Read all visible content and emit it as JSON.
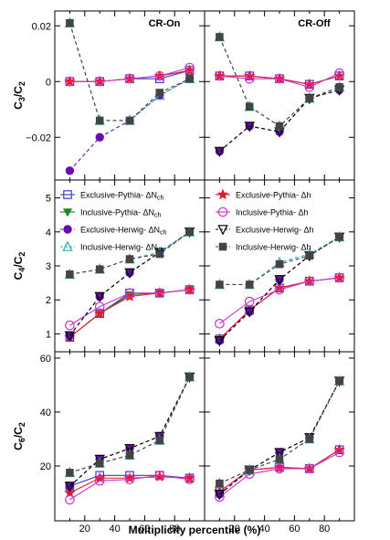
{
  "chart_data": {
    "type": "line",
    "xlabel": "Multiplicity percentile (%)",
    "x_ticks": [
      20,
      40,
      60,
      80
    ],
    "xlim": [
      0,
      100
    ],
    "x": [
      10,
      30,
      50,
      70,
      90
    ],
    "columns": [
      "CR-On",
      "CR-Off"
    ],
    "colors": {
      "exclusive_pythia_nch": "#3a3acf",
      "inclusive_pythia_nch": "#1a8a1a",
      "exclusive_herwig_nch": "#6a0dad",
      "inclusive_herwig_nch": "#2ab0b0",
      "exclusive_pythia_dh": "#e8192c",
      "inclusive_pythia_dh": "#cc33cc",
      "exclusive_herwig_dh": "#000000",
      "inclusive_herwig_dh": "#444444"
    },
    "legend": [
      {
        "key": "exclusive_pythia_nch",
        "prefix": "Exclusive-Pythia- ΔN",
        "sub": "ch",
        "marker": "open-square",
        "dashed": false
      },
      {
        "key": "inclusive_pythia_nch",
        "prefix": "Inclusive-Pythia- ΔN",
        "sub": "ch",
        "marker": "filled-tri-down",
        "dashed": false
      },
      {
        "key": "exclusive_herwig_nch",
        "prefix": "Exclusive-Herwig- ΔN",
        "sub": "ch",
        "marker": "filled-circle",
        "dashed": true
      },
      {
        "key": "inclusive_herwig_nch",
        "prefix": "Inclusive-Herwig- ΔN",
        "sub": "ch",
        "marker": "open-tri-up",
        "dashed": true
      },
      {
        "key": "exclusive_pythia_dh",
        "prefix": "Exclusive-Pythia- Δh",
        "sub": "",
        "marker": "filled-star",
        "dashed": false
      },
      {
        "key": "inclusive_pythia_dh",
        "prefix": "Inclusive-Pythia- Δh",
        "sub": "",
        "marker": "open-circle",
        "dashed": false
      },
      {
        "key": "exclusive_herwig_dh",
        "prefix": "Exclusive-Herwig- Δh",
        "sub": "",
        "marker": "open-tri-down",
        "dashed": true
      },
      {
        "key": "inclusive_herwig_dh",
        "prefix": "Inclusive-Herwig- Δh",
        "sub": "",
        "marker": "filled-square",
        "dashed": true
      }
    ],
    "rows": [
      {
        "ylabel_main": "C",
        "ylabel_sub1": "3",
        "ylabel_slash": "/C",
        "ylabel_sub2": "2",
        "ylim": [
          -0.035,
          0.025
        ],
        "y_ticks": [
          -0.02,
          0,
          0.02
        ],
        "y_tick_labels": [
          "−0.02",
          "0",
          "0.02"
        ],
        "panels": [
          {
            "title": "CR-On",
            "series": [
              {
                "key": "exclusive_pythia_nch",
                "values": [
                  0.0,
                  0.0,
                  0.001,
                  0.001,
                  0.004
                ]
              },
              {
                "key": "exclusive_pythia_dh",
                "values": [
                  0.0,
                  0.0,
                  0.001,
                  0.002,
                  0.004
                ]
              },
              {
                "key": "inclusive_pythia_dh",
                "values": [
                  0.0,
                  0.0,
                  0.001,
                  0.002,
                  0.005
                ]
              },
              {
                "key": "exclusive_herwig_nch",
                "values": [
                  -0.032,
                  -0.02,
                  -0.014,
                  -0.005,
                  0.001
                ]
              },
              {
                "key": "inclusive_herwig_nch",
                "values": [
                  0.021,
                  -0.014,
                  -0.014,
                  -0.005,
                  0.001
                ]
              },
              {
                "key": "inclusive_herwig_dh",
                "values": [
                  0.021,
                  -0.014,
                  -0.014,
                  -0.004,
                  0.001
                ]
              }
            ]
          },
          {
            "title": "CR-Off",
            "series": [
              {
                "key": "exclusive_pythia_nch",
                "values": [
                  0.002,
                  0.002,
                  0.001,
                  -0.001,
                  0.002
                ]
              },
              {
                "key": "exclusive_pythia_dh",
                "values": [
                  0.002,
                  0.002,
                  0.001,
                  -0.001,
                  0.002
                ]
              },
              {
                "key": "inclusive_pythia_dh",
                "values": [
                  0.002,
                  0.001,
                  0.001,
                  -0.002,
                  0.003
                ]
              },
              {
                "key": "exclusive_herwig_nch",
                "values": [
                  -0.025,
                  -0.016,
                  -0.018,
                  -0.006,
                  -0.003
                ]
              },
              {
                "key": "inclusive_herwig_nch",
                "values": [
                  0.016,
                  -0.009,
                  -0.016,
                  -0.006,
                  -0.002
                ]
              },
              {
                "key": "exclusive_herwig_dh",
                "values": [
                  -0.025,
                  -0.016,
                  -0.018,
                  -0.006,
                  -0.003
                ]
              },
              {
                "key": "inclusive_herwig_dh",
                "values": [
                  0.016,
                  -0.009,
                  -0.016,
                  -0.006,
                  -0.002
                ]
              }
            ]
          }
        ]
      },
      {
        "ylabel_main": "C",
        "ylabel_sub1": "4",
        "ylabel_slash": "/C",
        "ylabel_sub2": "2",
        "ylim": [
          0.5,
          5.5
        ],
        "y_ticks": [
          1,
          2,
          3,
          4,
          5
        ],
        "y_tick_labels": [
          "1",
          "2",
          "3",
          "4",
          "5"
        ],
        "panels": [
          {
            "title": "",
            "series": [
              {
                "key": "exclusive_pythia_nch",
                "values": [
                  0.9,
                  1.6,
                  2.2,
                  2.2,
                  2.3
                ]
              },
              {
                "key": "inclusive_pythia_nch",
                "values": [
                  0.9,
                  1.6,
                  2.15,
                  2.2,
                  2.3
                ]
              },
              {
                "key": "exclusive_pythia_dh",
                "values": [
                  0.9,
                  1.6,
                  2.1,
                  2.2,
                  2.3
                ]
              },
              {
                "key": "inclusive_pythia_dh",
                "values": [
                  1.25,
                  1.8,
                  2.2,
                  2.2,
                  2.3
                ]
              },
              {
                "key": "exclusive_herwig_nch",
                "values": [
                  0.95,
                  2.1,
                  2.8,
                  3.4,
                  4.0
                ]
              },
              {
                "key": "exclusive_herwig_dh",
                "values": [
                  0.95,
                  2.1,
                  2.8,
                  3.4,
                  4.0
                ]
              },
              {
                "key": "inclusive_herwig_nch",
                "values": [
                  2.75,
                  2.9,
                  3.2,
                  3.4,
                  4.0
                ]
              },
              {
                "key": "inclusive_herwig_dh",
                "values": [
                  2.75,
                  2.9,
                  3.2,
                  3.35,
                  4.0
                ]
              }
            ]
          },
          {
            "title": "",
            "series": [
              {
                "key": "exclusive_pythia_nch",
                "values": [
                  0.85,
                  1.7,
                  2.35,
                  2.55,
                  2.65
                ]
              },
              {
                "key": "exclusive_pythia_dh",
                "values": [
                  0.85,
                  1.7,
                  2.35,
                  2.55,
                  2.65
                ]
              },
              {
                "key": "inclusive_pythia_dh",
                "values": [
                  1.3,
                  1.95,
                  2.3,
                  2.55,
                  2.65
                ]
              },
              {
                "key": "exclusive_herwig_nch",
                "values": [
                  0.8,
                  1.65,
                  2.6,
                  3.3,
                  3.85
                ]
              },
              {
                "key": "exclusive_herwig_dh",
                "values": [
                  0.8,
                  1.65,
                  2.6,
                  3.3,
                  3.85
                ]
              },
              {
                "key": "inclusive_herwig_nch",
                "values": [
                  2.45,
                  2.45,
                  3.1,
                  3.35,
                  3.85
                ]
              },
              {
                "key": "inclusive_herwig_dh",
                "values": [
                  2.45,
                  2.45,
                  3.05,
                  3.3,
                  3.85
                ]
              }
            ]
          }
        ]
      },
      {
        "ylabel_main": "C",
        "ylabel_sub1": "6",
        "ylabel_slash": "/C",
        "ylabel_sub2": "2",
        "ylim": [
          0,
          62
        ],
        "y_ticks": [
          20,
          40,
          60
        ],
        "y_tick_labels": [
          "20",
          "40",
          "60"
        ],
        "panels": [
          {
            "title": "",
            "series": [
              {
                "key": "exclusive_pythia_nch",
                "values": [
                  12.5,
                  16.5,
                  16.5,
                  16.5,
                  15.5
                ]
              },
              {
                "key": "exclusive_pythia_dh",
                "values": [
                  10.0,
                  15.5,
                  15.5,
                  16.0,
                  15.5
                ]
              },
              {
                "key": "inclusive_pythia_dh",
                "values": [
                  7.5,
                  14.5,
                  15.0,
                  16.5,
                  15.0
                ]
              },
              {
                "key": "exclusive_herwig_nch",
                "values": [
                  12.5,
                  22.5,
                  26.5,
                  31.0,
                  53.0
                ]
              },
              {
                "key": "exclusive_herwig_dh",
                "values": [
                  12.5,
                  22.5,
                  26.5,
                  31.0,
                  53.0
                ]
              },
              {
                "key": "inclusive_herwig_nch",
                "values": [
                  17.5,
                  21.0,
                  24.0,
                  29.5,
                  53.0
                ]
              },
              {
                "key": "inclusive_herwig_dh",
                "values": [
                  17.5,
                  21.0,
                  24.0,
                  29.5,
                  53.0
                ]
              }
            ]
          },
          {
            "title": "",
            "series": [
              {
                "key": "exclusive_pythia_nch",
                "values": [
                  10.5,
                  18.5,
                  19.5,
                  19.0,
                  26.0
                ]
              },
              {
                "key": "exclusive_pythia_dh",
                "values": [
                  10.5,
                  18.5,
                  19.5,
                  19.0,
                  26.0
                ]
              },
              {
                "key": "inclusive_pythia_dh",
                "values": [
                  8.5,
                  17.0,
                  19.0,
                  19.0,
                  25.0
                ]
              },
              {
                "key": "exclusive_herwig_nch",
                "values": [
                  9.5,
                  18.5,
                  25.0,
                  30.5,
                  51.5
                ]
              },
              {
                "key": "exclusive_herwig_dh",
                "values": [
                  9.5,
                  18.5,
                  25.0,
                  30.5,
                  51.5
                ]
              },
              {
                "key": "inclusive_herwig_nch",
                "values": [
                  13.5,
                  18.5,
                  22.5,
                  30.0,
                  51.5
                ]
              },
              {
                "key": "inclusive_herwig_dh",
                "values": [
                  13.5,
                  18.5,
                  22.5,
                  30.0,
                  51.5
                ]
              }
            ]
          }
        ]
      }
    ]
  }
}
